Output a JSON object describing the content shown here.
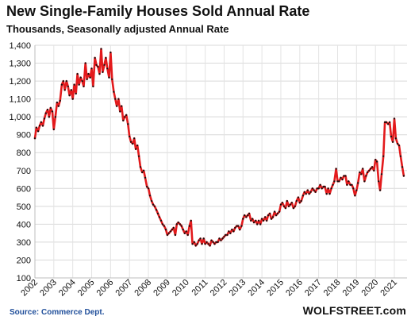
{
  "chart_data": {
    "type": "line",
    "title": "New Single-Family Houses Sold Annual Rate",
    "subtitle": "Thousands, Seasonally adjusted Annual Rate",
    "source": "Source: Commerce Dept.",
    "watermark": "WOLFSTREET.com",
    "xlabel": "",
    "ylabel": "",
    "ylim": [
      100,
      1400
    ],
    "xlim": [
      2002.0,
      2021.67
    ],
    "yticks": [
      "100",
      "200",
      "300",
      "400",
      "500",
      "600",
      "700",
      "800",
      "900",
      "1,000",
      "1,100",
      "1,200",
      "1,300",
      "1,400"
    ],
    "xticks": [
      "2002",
      "2003",
      "2004",
      "2005",
      "2006",
      "2007",
      "2008",
      "2009",
      "2010",
      "2011",
      "2012",
      "2013",
      "2014",
      "2015",
      "2016",
      "2017",
      "2018",
      "2019",
      "2020",
      "2021"
    ],
    "grid": true,
    "line_color": "#e31a1c",
    "marker_color": "#111111",
    "series": [
      {
        "x": [
          2002.0,
          2002.08,
          2002.17,
          2002.25,
          2002.33,
          2002.42,
          2002.5,
          2002.58,
          2002.67,
          2002.75,
          2002.83,
          2002.92,
          2003.0,
          2003.08,
          2003.17,
          2003.25,
          2003.33,
          2003.42,
          2003.5,
          2003.58,
          2003.67,
          2003.75,
          2003.83,
          2003.92,
          2004.0,
          2004.08,
          2004.17,
          2004.25,
          2004.33,
          2004.42,
          2004.5,
          2004.58,
          2004.67,
          2004.75,
          2004.83,
          2004.92,
          2005.0,
          2005.08,
          2005.17,
          2005.25,
          2005.33,
          2005.42,
          2005.5,
          2005.58,
          2005.67,
          2005.75,
          2005.83,
          2005.92,
          2006.0,
          2006.08,
          2006.17,
          2006.25,
          2006.33,
          2006.42,
          2006.5,
          2006.58,
          2006.67,
          2006.75,
          2006.83,
          2006.92,
          2007.0,
          2007.08,
          2007.17,
          2007.25,
          2007.33,
          2007.42,
          2007.5,
          2007.58,
          2007.67,
          2007.75,
          2007.83,
          2007.92,
          2008.0,
          2008.08,
          2008.17,
          2008.25,
          2008.33,
          2008.42,
          2008.5,
          2008.58,
          2008.67,
          2008.75,
          2008.83,
          2008.92,
          2009.0,
          2009.08,
          2009.17,
          2009.25,
          2009.33,
          2009.42,
          2009.5,
          2009.58,
          2009.67,
          2009.75,
          2009.83,
          2009.92,
          2010.0,
          2010.08,
          2010.17,
          2010.25,
          2010.33,
          2010.42,
          2010.5,
          2010.58,
          2010.67,
          2010.75,
          2010.83,
          2010.92,
          2011.0,
          2011.08,
          2011.17,
          2011.25,
          2011.33,
          2011.42,
          2011.5,
          2011.58,
          2011.67,
          2011.75,
          2011.83,
          2011.92,
          2012.0,
          2012.08,
          2012.17,
          2012.25,
          2012.33,
          2012.42,
          2012.5,
          2012.58,
          2012.67,
          2012.75,
          2012.83,
          2012.92,
          2013.0,
          2013.08,
          2013.17,
          2013.25,
          2013.33,
          2013.42,
          2013.5,
          2013.58,
          2013.67,
          2013.75,
          2013.83,
          2013.92,
          2014.0,
          2014.08,
          2014.17,
          2014.25,
          2014.33,
          2014.42,
          2014.5,
          2014.58,
          2014.67,
          2014.75,
          2014.83,
          2014.92,
          2015.0,
          2015.08,
          2015.17,
          2015.25,
          2015.33,
          2015.42,
          2015.5,
          2015.58,
          2015.67,
          2015.75,
          2015.83,
          2015.92,
          2016.0,
          2016.08,
          2016.17,
          2016.25,
          2016.33,
          2016.42,
          2016.5,
          2016.58,
          2016.67,
          2016.75,
          2016.83,
          2016.92,
          2017.0,
          2017.08,
          2017.17,
          2017.25,
          2017.33,
          2017.42,
          2017.5,
          2017.58,
          2017.67,
          2017.75,
          2017.83,
          2017.92,
          2018.0,
          2018.08,
          2018.17,
          2018.25,
          2018.33,
          2018.42,
          2018.5,
          2018.58,
          2018.67,
          2018.75,
          2018.83,
          2018.92,
          2019.0,
          2019.08,
          2019.17,
          2019.25,
          2019.33,
          2019.42,
          2019.5,
          2019.58,
          2019.67,
          2019.75,
          2019.83,
          2019.92,
          2020.0,
          2020.08,
          2020.17,
          2020.25,
          2020.33,
          2020.42,
          2020.5,
          2020.58,
          2020.67,
          2020.75,
          2020.83,
          2020.92,
          2021.0,
          2021.08,
          2021.17,
          2021.25,
          2021.33,
          2021.42,
          2021.5
        ],
        "y": [
          880,
          940,
          920,
          950,
          970,
          950,
          990,
          1020,
          1040,
          1000,
          1050,
          1030,
          930,
          1000,
          1080,
          1060,
          1090,
          1180,
          1200,
          1150,
          1200,
          1170,
          1120,
          1150,
          1100,
          1180,
          1130,
          1240,
          1180,
          1220,
          1200,
          1170,
          1300,
          1210,
          1240,
          1220,
          1270,
          1170,
          1330,
          1290,
          1280,
          1240,
          1380,
          1250,
          1290,
          1330,
          1270,
          1220,
          1360,
          1210,
          1140,
          1100,
          1060,
          1100,
          1030,
          1060,
          980,
          1000,
          1010,
          960,
          890,
          860,
          850,
          880,
          820,
          840,
          780,
          720,
          690,
          700,
          660,
          610,
          600,
          560,
          530,
          510,
          500,
          480,
          460,
          440,
          420,
          400,
          390,
          370,
          340,
          350,
          360,
          370,
          380,
          340,
          400,
          410,
          400,
          390,
          370,
          350,
          360,
          340,
          390,
          420,
          290,
          300,
          280,
          290,
          310,
          320,
          290,
          320,
          290,
          300,
          290,
          280,
          310,
          300,
          290,
          300,
          300,
          320,
          310,
          320,
          330,
          340,
          340,
          360,
          350,
          370,
          360,
          380,
          390,
          390,
          370,
          390,
          430,
          450,
          440,
          450,
          460,
          420,
          430,
          410,
          420,
          400,
          420,
          400,
          430,
          420,
          440,
          420,
          450,
          460,
          430,
          440,
          470,
          450,
          460,
          470,
          510,
          520,
          500,
          490,
          530,
          500,
          510,
          520,
          490,
          500,
          530,
          550,
          520,
          530,
          560,
          580,
          570,
          590,
          570,
          580,
          600,
          590,
          580,
          600,
          600,
          620,
          600,
          610,
          610,
          570,
          600,
          570,
          600,
          620,
          640,
          710,
          640,
          640,
          660,
          650,
          670,
          670,
          620,
          640,
          620,
          620,
          600,
          560,
          590,
          630,
          690,
          680,
          710,
          640,
          670,
          690,
          700,
          710,
          720,
          700,
          760,
          750,
          640,
          590,
          680,
          780,
          970,
          970,
          960,
          970,
          890,
          860,
          990,
          880,
          850,
          840,
          780,
          720,
          670
        ]
      }
    ]
  }
}
